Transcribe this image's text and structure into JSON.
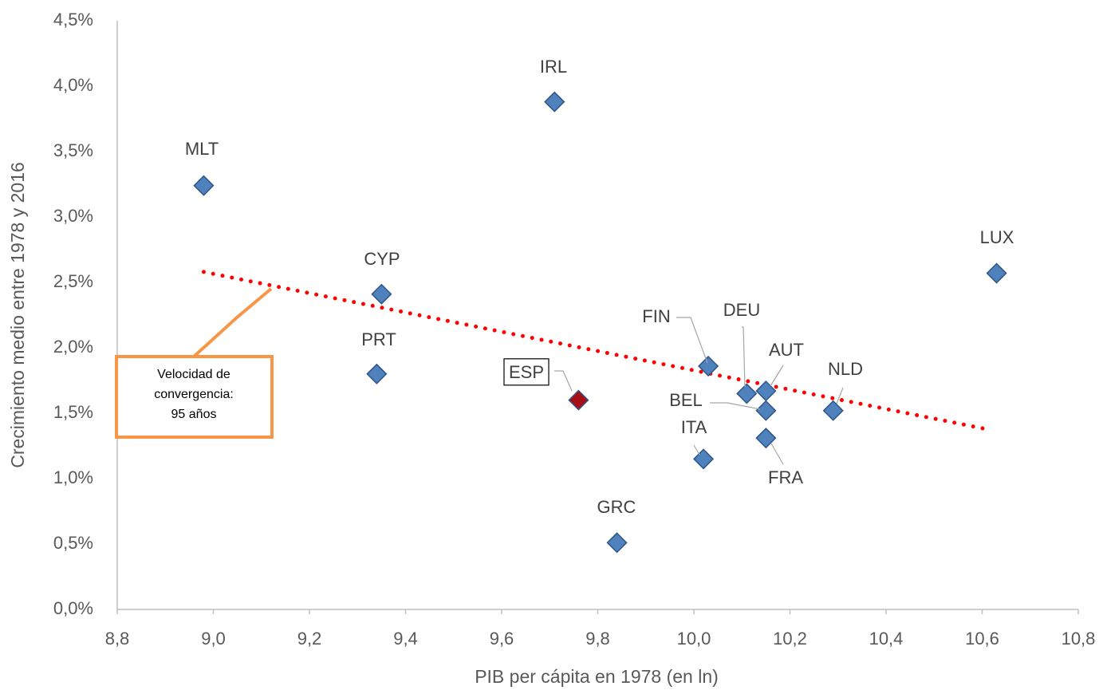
{
  "chart_data": {
    "type": "scatter",
    "x_label": "PIB per cápita en 1978 (en ln)",
    "y_label": "Crecimiento medio entre 1978 y 2016",
    "labels": [
      "MLT",
      "IRL",
      "CYP",
      "PRT",
      "ESP",
      "GRC",
      "FIN",
      "DEU",
      "AUT",
      "BEL",
      "FRA",
      "ITA",
      "NLD",
      "LUX"
    ],
    "x": [
      8.98,
      9.71,
      9.35,
      9.34,
      9.76,
      9.84,
      10.03,
      10.11,
      10.15,
      10.15,
      10.15,
      10.02,
      10.29,
      10.63
    ],
    "values": [
      3.24,
      3.88,
      2.41,
      1.8,
      1.6,
      0.51,
      1.86,
      1.65,
      1.67,
      1.52,
      1.31,
      1.15,
      1.52,
      2.57
    ],
    "colors": [
      "#4f81bd",
      "#4f81bd",
      "#4f81bd",
      "#4f81bd",
      "#a50f15",
      "#4f81bd",
      "#4f81bd",
      "#4f81bd",
      "#4f81bd",
      "#4f81bd",
      "#4f81bd",
      "#4f81bd",
      "#4f81bd",
      "#4f81bd"
    ],
    "trendline": {
      "x": [
        8.98,
        10.62
      ],
      "values": [
        2.58,
        1.37
      ],
      "color": "#ff0000"
    },
    "annotation": [
      "Velocidad de",
      "convergencia:",
      "95 años"
    ],
    "xlim": [
      8.8,
      10.8
    ],
    "xticks": [
      {
        "value": 8.8,
        "label": "8,8"
      },
      {
        "value": 9.0,
        "label": "9,0"
      },
      {
        "value": 9.2,
        "label": "9,2"
      },
      {
        "value": 9.4,
        "label": "9,4"
      },
      {
        "value": 9.6,
        "label": "9,6"
      },
      {
        "value": 9.8,
        "label": "9,8"
      },
      {
        "value": 10.0,
        "label": "10,0"
      },
      {
        "value": 10.2,
        "label": "10,2"
      },
      {
        "value": 10.4,
        "label": "10,4"
      },
      {
        "value": 10.6,
        "label": "10,6"
      },
      {
        "value": 10.8,
        "label": "10,8"
      }
    ],
    "ylim": [
      0,
      4.5
    ],
    "yticks": [
      {
        "value": 0,
        "label": "0,0%"
      },
      {
        "value": 0.5,
        "label": "0,5%"
      },
      {
        "value": 1.0,
        "label": "1,0%"
      },
      {
        "value": 1.5,
        "label": "1,5%"
      },
      {
        "value": 2.0,
        "label": "2,0%"
      },
      {
        "value": 2.5,
        "label": "2,5%"
      },
      {
        "value": 3.0,
        "label": "3,0%"
      },
      {
        "value": 3.5,
        "label": "3,5%"
      },
      {
        "value": 4.0,
        "label": "4,0%"
      },
      {
        "value": 4.5,
        "label": "4,5%"
      }
    ]
  }
}
